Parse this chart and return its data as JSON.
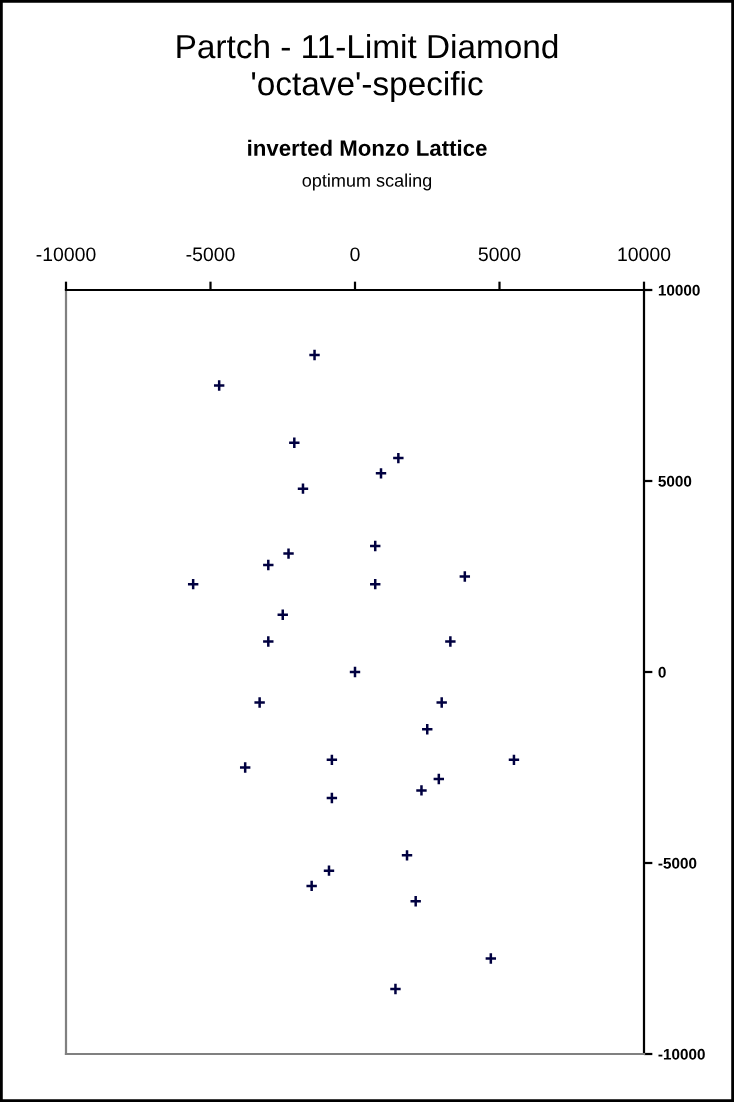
{
  "chart_data": {
    "type": "scatter",
    "title": "Partch - 11-Limit Diamond\n'octave'-specific",
    "subtitle": "inverted Monzo Lattice",
    "annotations": [
      "optimum scaling"
    ],
    "x": [
      -1400,
      -4700,
      -2100,
      1500,
      900,
      -1800,
      700,
      -2300,
      -3000,
      3800,
      -5600,
      700,
      -2500,
      -3000,
      3300,
      0,
      -3300,
      3000,
      2500,
      -800,
      5500,
      -3800,
      2900,
      2300,
      -800,
      1800,
      -900,
      -1500,
      2100,
      4700,
      1400
    ],
    "values": [
      8300,
      7500,
      6000,
      5600,
      5200,
      4800,
      3300,
      3100,
      2800,
      2500,
      2300,
      2300,
      1500,
      800,
      800,
      0,
      -800,
      -800,
      -1500,
      -2300,
      -2300,
      -2500,
      -2800,
      -3100,
      -3300,
      -4800,
      -5200,
      -5600,
      -6000,
      -7500,
      -8300
    ],
    "color": "#000040",
    "marker": "cross",
    "xlim": [
      -10000,
      10000
    ],
    "xticks": [
      -10000,
      -5000,
      0,
      5000,
      10000
    ],
    "ylim": [
      -10000,
      10000
    ],
    "yticks": [
      -10000,
      -5000,
      0,
      5000,
      10000
    ],
    "grid": false,
    "legend": false
  }
}
